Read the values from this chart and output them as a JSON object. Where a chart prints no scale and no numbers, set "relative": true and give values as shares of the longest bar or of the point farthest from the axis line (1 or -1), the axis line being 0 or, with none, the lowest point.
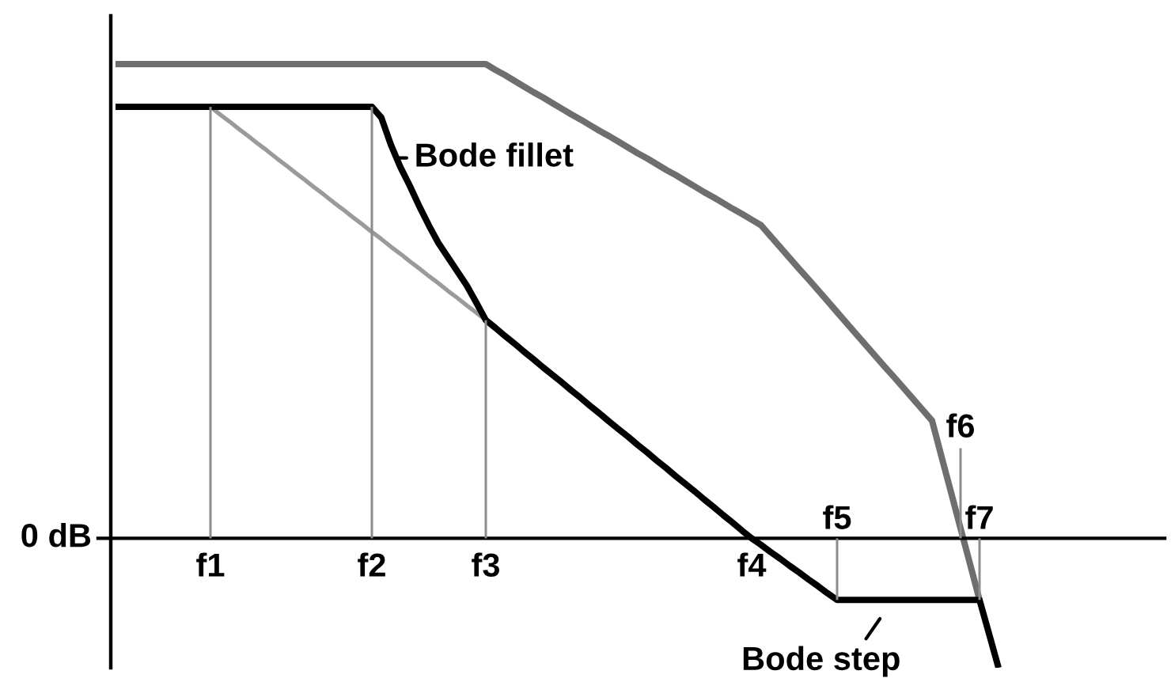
{
  "chart_data": {
    "type": "line",
    "relative": true,
    "categories": [
      null,
      null,
      null,
      null,
      null,
      null,
      null,
      null,
      null,
      null,
      "f1",
      null,
      null,
      null,
      null,
      null,
      null,
      null,
      null,
      null,
      null,
      null,
      null,
      null,
      null,
      null,
      null,
      "f2",
      null,
      null,
      null,
      null,
      null,
      null,
      null,
      null,
      null,
      null,
      null,
      "f3",
      null,
      null,
      null,
      null,
      null,
      null,
      null,
      null,
      null,
      null,
      null,
      null,
      null,
      null,
      null,
      null,
      null,
      null,
      null,
      null,
      null,
      null,
      null,
      null,
      null,
      null,
      null,
      "f4",
      null,
      null,
      null,
      null,
      null,
      null,
      null,
      null,
      "f5",
      null,
      null,
      null,
      null,
      null,
      null,
      null,
      null,
      null,
      null,
      null,
      null,
      "f6",
      null,
      "f7",
      null,
      null,
      null,
      null,
      null,
      null,
      null,
      null,
      null,
      null,
      null,
      null,
      null,
      null,
      null,
      null,
      null,
      null,
      null
    ],
    "series": [
      {
        "type": "bar",
        "color": "#8c8c8c",
        "values": [
          null,
          null,
          null,
          null,
          null,
          null,
          null,
          null,
          null,
          null,
          0.91,
          null,
          null,
          null,
          null,
          null,
          null,
          null,
          null,
          null,
          null,
          null,
          null,
          null,
          null,
          null,
          null,
          0.91,
          null,
          null,
          null,
          null,
          null,
          null,
          null,
          null,
          null,
          null,
          null,
          0.46,
          null,
          null,
          null,
          null,
          null,
          null,
          null,
          null,
          null,
          null,
          null,
          null,
          null,
          null,
          null,
          null,
          null,
          null,
          null,
          null,
          null,
          null,
          null,
          null,
          null,
          null,
          null,
          null,
          null,
          null,
          null,
          null,
          null,
          null,
          null,
          null,
          -0.13,
          null,
          null,
          null,
          null,
          null,
          null,
          null,
          null,
          null,
          null,
          null,
          null,
          0.19,
          null,
          -0.13,
          null,
          null,
          null,
          null,
          null,
          null,
          null,
          null,
          null,
          null,
          null,
          null,
          null,
          null,
          null,
          null,
          null,
          null,
          null
        ]
      },
      {
        "color": "#9a9a9a",
        "values": [
          null,
          null,
          null,
          null,
          null,
          null,
          null,
          null,
          null,
          null,
          0.91,
          0.894,
          0.879,
          0.863,
          0.848,
          0.832,
          0.817,
          0.801,
          0.786,
          0.77,
          0.755,
          0.739,
          0.724,
          0.708,
          0.693,
          0.677,
          0.662,
          0.646,
          0.631,
          0.615,
          0.6,
          0.584,
          0.569,
          0.553,
          0.538,
          0.522,
          0.507,
          0.491,
          0.476,
          0.46,
          null,
          null,
          null,
          null,
          null,
          null,
          null,
          null,
          null,
          null,
          null,
          null,
          null,
          null,
          null,
          null,
          null,
          null,
          null,
          null,
          null,
          null,
          null,
          null,
          null,
          null,
          null,
          null,
          null,
          null,
          null,
          null,
          null,
          null,
          null,
          null,
          null,
          null,
          null,
          null,
          null,
          null,
          null,
          null,
          null,
          null,
          null,
          null,
          null,
          null,
          null,
          null,
          null,
          null,
          null,
          null,
          null,
          null,
          null,
          null,
          null,
          null,
          null,
          null,
          null,
          null,
          null,
          null,
          null,
          null,
          null
        ]
      },
      {
        "color": "#6e6e6e",
        "values": [
          1,
          1,
          1,
          1,
          1,
          1,
          1,
          1,
          1,
          1,
          1,
          1,
          1,
          1,
          1,
          1,
          1,
          1,
          1,
          1,
          1,
          1,
          1,
          1,
          1,
          1,
          1,
          1,
          1,
          1,
          1,
          1,
          1,
          1,
          1,
          1,
          1,
          1,
          1,
          1,
          0.988,
          0.977,
          0.965,
          0.953,
          0.941,
          0.93,
          0.918,
          0.906,
          0.894,
          0.883,
          0.871,
          0.859,
          0.848,
          0.836,
          0.824,
          0.812,
          0.801,
          0.789,
          0.777,
          0.766,
          0.754,
          0.742,
          0.73,
          0.719,
          0.707,
          0.695,
          0.684,
          0.672,
          0.66,
          0.637,
          0.614,
          0.591,
          0.568,
          0.546,
          0.523,
          0.5,
          0.477,
          0.454,
          0.431,
          0.408,
          0.385,
          0.362,
          0.34,
          0.317,
          0.294,
          0.271,
          0.248,
          0.172,
          0.097,
          0.021,
          -0.054,
          -0.13,
          null,
          null,
          null,
          null,
          null,
          null,
          null,
          null,
          null,
          null,
          null,
          null,
          null,
          null,
          null,
          null,
          null,
          null,
          null
        ]
      },
      {
        "color": "#000000",
        "values": [
          0.91,
          0.91,
          0.91,
          0.91,
          0.91,
          0.91,
          0.91,
          0.91,
          0.91,
          0.91,
          0.91,
          0.91,
          0.91,
          0.91,
          0.91,
          0.91,
          0.91,
          0.91,
          0.91,
          0.91,
          0.91,
          0.91,
          0.91,
          0.91,
          0.91,
          0.91,
          0.91,
          0.91,
          0.887,
          0.83,
          0.783,
          0.743,
          0.7,
          0.66,
          0.623,
          0.593,
          0.563,
          0.533,
          0.497,
          0.46,
          0.444,
          0.427,
          0.411,
          0.394,
          0.378,
          0.361,
          0.345,
          0.329,
          0.312,
          0.296,
          0.279,
          0.263,
          0.246,
          0.23,
          0.214,
          0.197,
          0.181,
          0.164,
          0.148,
          0.131,
          0.115,
          0.099,
          0.082,
          0.066,
          0.049,
          0.033,
          0.016,
          0,
          -0.014,
          -0.029,
          -0.043,
          -0.058,
          -0.072,
          -0.087,
          -0.101,
          -0.116,
          -0.13,
          -0.13,
          -0.13,
          -0.13,
          -0.13,
          -0.13,
          -0.13,
          -0.13,
          -0.13,
          -0.13,
          -0.13,
          -0.13,
          -0.13,
          -0.13,
          -0.13,
          -0.13,
          -0.201,
          -0.273,
          null,
          null,
          null,
          null,
          null,
          null,
          null,
          null,
          null,
          null,
          null,
          null,
          null,
          null,
          null,
          null,
          null
        ]
      }
    ],
    "annotations": [
      "0 dB",
      "Bode fillet",
      "Bode step"
    ]
  }
}
